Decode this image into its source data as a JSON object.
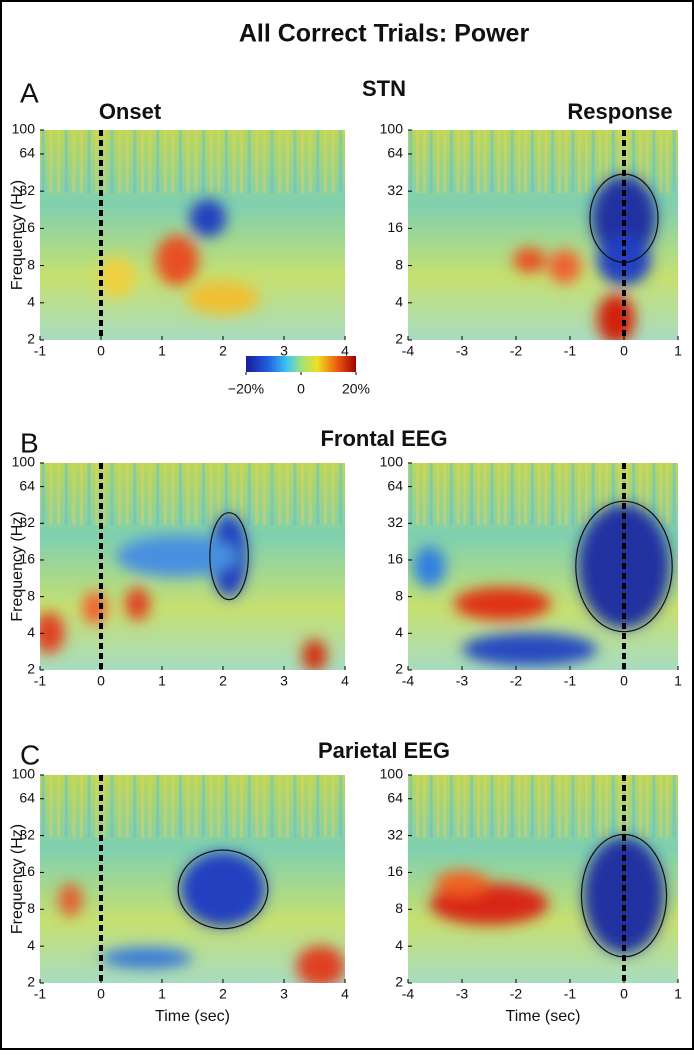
{
  "title": "All Correct Trials:  Power",
  "colorbar": {
    "lim": [
      -20,
      20
    ],
    "ticks": [
      {
        "value": -20,
        "label": "−20%"
      },
      0,
      {
        "value": 20,
        "label": "20%"
      }
    ]
  },
  "rows": [
    {
      "letter": "A",
      "title": "STN",
      "left_label": "Onset",
      "right_label": "Response"
    },
    {
      "letter": "B",
      "title": "Frontal EEG"
    },
    {
      "letter": "C",
      "title": "Parietal EEG"
    }
  ],
  "chart_data": [
    {
      "type": "heatmap",
      "ylabel": "Frequency (Hz)",
      "xlim": [
        -1,
        4
      ],
      "xticks": [
        -1,
        0,
        1,
        2,
        3,
        4
      ],
      "ylim": [
        2,
        100
      ],
      "yticks": [
        2,
        4,
        8,
        16,
        32,
        64,
        100
      ],
      "log_y": true,
      "marker_x": 0
    },
    {
      "type": "heatmap",
      "xlim": [
        -4,
        1
      ],
      "xticks": [
        -4,
        -3,
        -2,
        -1,
        0,
        1
      ],
      "ylim": [
        2,
        100
      ],
      "yticks": [
        2,
        4,
        8,
        16,
        32,
        64,
        100
      ],
      "log_y": true,
      "marker_x": 0
    },
    {
      "type": "heatmap",
      "ylabel": "Frequency (Hz)",
      "xlim": [
        -1,
        4
      ],
      "xticks": [
        -1,
        0,
        1,
        2,
        3,
        4
      ],
      "ylim": [
        2,
        100
      ],
      "yticks": [
        2,
        4,
        8,
        16,
        32,
        64,
        100
      ],
      "log_y": true,
      "marker_x": 0
    },
    {
      "type": "heatmap",
      "xlim": [
        -4,
        1
      ],
      "xticks": [
        -4,
        -3,
        -2,
        -1,
        0,
        1
      ],
      "ylim": [
        2,
        100
      ],
      "yticks": [
        2,
        4,
        8,
        16,
        32,
        64,
        100
      ],
      "log_y": true,
      "marker_x": 0
    },
    {
      "type": "heatmap",
      "ylabel": "Frequency (Hz)",
      "xlabel": "Time (sec)",
      "xlim": [
        -1,
        4
      ],
      "xticks": [
        -1,
        0,
        1,
        2,
        3,
        4
      ],
      "ylim": [
        2,
        100
      ],
      "yticks": [
        2,
        4,
        8,
        16,
        32,
        64,
        100
      ],
      "log_y": true,
      "marker_x": 0
    },
    {
      "type": "heatmap",
      "xlabel": "Time (sec)",
      "xlim": [
        -4,
        1
      ],
      "xticks": [
        -4,
        -3,
        -2,
        -1,
        0,
        1
      ],
      "ylim": [
        2,
        100
      ],
      "yticks": [
        2,
        4,
        8,
        16,
        32,
        64,
        100
      ],
      "log_y": true,
      "marker_x": 0
    }
  ]
}
